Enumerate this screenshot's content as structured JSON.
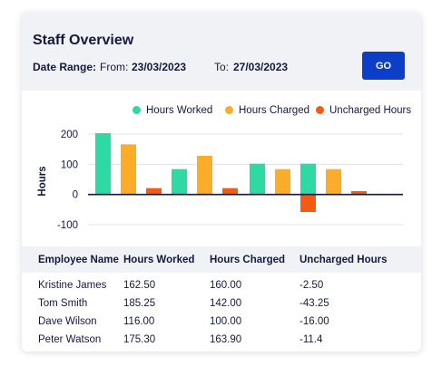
{
  "header": {
    "title": "Staff Overview",
    "date_range_label": "Date Range:",
    "from_label": "From:",
    "from_value": "23/03/2023",
    "to_label": "To:",
    "to_value": "27/03/2023",
    "go_label": "GO"
  },
  "colors": {
    "hours_worked": "#2ed9a3",
    "hours_charged": "#fbac28",
    "uncharged_hours": "#f25c12",
    "button": "#0d3ec7"
  },
  "chart_data": {
    "type": "bar",
    "ylabel": "Hours",
    "xlabel": "",
    "ylim": [
      -100,
      200
    ],
    "yticks": [
      200,
      100,
      0,
      -100
    ],
    "categories": [
      "",
      "",
      "",
      ""
    ],
    "series": [
      {
        "name": "Hours Worked",
        "values": [
          203,
          84,
          102,
          102
        ]
      },
      {
        "name": "Hours Charged",
        "values": [
          166,
          128,
          84,
          84
        ]
      },
      {
        "name": "Uncharged Hours",
        "values": [
          21,
          21,
          -58,
          11
        ]
      }
    ],
    "legend_position": "top-right",
    "grid": true
  },
  "table": {
    "headers": [
      "Employee Name",
      "Hours Worked",
      "Hours Charged",
      "Uncharged Hours"
    ],
    "rows": [
      [
        "Kristine James",
        "162.50",
        "160.00",
        "-2.50"
      ],
      [
        "Tom Smith",
        "185.25",
        "142.00",
        "-43.25"
      ],
      [
        "Dave Wilson",
        "116.00",
        "100.00",
        "-16.00"
      ],
      [
        "Peter Watson",
        "175.30",
        "163.90",
        "-11.4"
      ]
    ]
  }
}
